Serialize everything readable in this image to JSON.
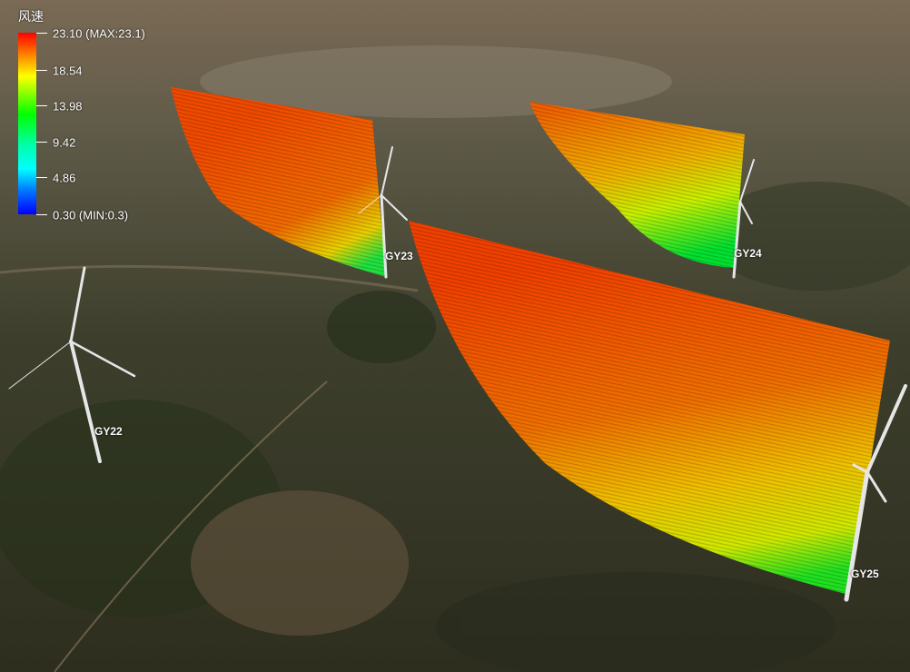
{
  "legend": {
    "title": "风速",
    "ticks": [
      "23.10 (MAX:23.1)",
      "18.54",
      "13.98",
      "9.42",
      "4.86",
      "0.30 (MIN:0.3)"
    ],
    "colors": [
      "#ff0000",
      "#ff8000",
      "#ffff00",
      "#00ff00",
      "#00ffff",
      "#0000ff"
    ]
  },
  "turbines": [
    {
      "label": "GY22"
    },
    {
      "label": "GY23"
    },
    {
      "label": "GY24"
    },
    {
      "label": "GY25"
    }
  ]
}
